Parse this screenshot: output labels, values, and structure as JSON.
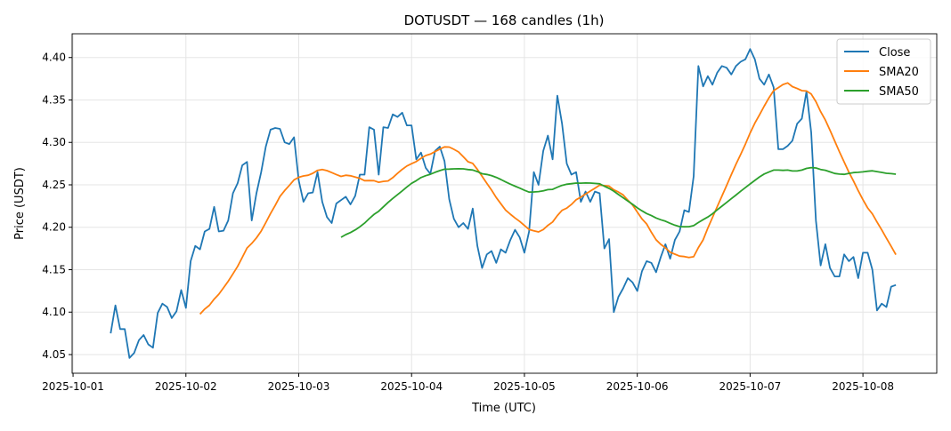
{
  "chart_data": {
    "type": "line",
    "title": "DOTUSDT — 168 candles (1h)",
    "xlabel": "Time (UTC)",
    "ylabel": "Price (USDT)",
    "start_time": "2025-10-01 08:00",
    "interval_hours": 1,
    "x_ticks": [
      "2025-10-01",
      "2025-10-02",
      "2025-10-03",
      "2025-10-04",
      "2025-10-05",
      "2025-10-06",
      "2025-10-07",
      "2025-10-08"
    ],
    "y_ticks": [
      "4.05",
      "4.10",
      "4.15",
      "4.20",
      "4.25",
      "4.30",
      "4.35",
      "4.40"
    ],
    "ylim": [
      4.028,
      4.428
    ],
    "xlim_hours_from_2025-10-01": [
      -0.2,
      183.7
    ],
    "grid": true,
    "legend_position": "top-right",
    "series": [
      {
        "name": "Close",
        "color": "#1f77b4",
        "values": [
          4.075,
          4.108,
          4.08,
          4.08,
          4.046,
          4.052,
          4.067,
          4.073,
          4.062,
          4.058,
          4.099,
          4.11,
          4.106,
          4.093,
          4.101,
          4.126,
          4.105,
          4.16,
          4.178,
          4.174,
          4.195,
          4.198,
          4.224,
          4.195,
          4.196,
          4.208,
          4.24,
          4.252,
          4.273,
          4.277,
          4.208,
          4.24,
          4.265,
          4.295,
          4.315,
          4.317,
          4.316,
          4.3,
          4.298,
          4.306,
          4.255,
          4.23,
          4.24,
          4.241,
          4.265,
          4.23,
          4.212,
          4.205,
          4.228,
          4.232,
          4.236,
          4.227,
          4.237,
          4.262,
          4.262,
          4.318,
          4.315,
          4.262,
          4.318,
          4.317,
          4.333,
          4.33,
          4.335,
          4.32,
          4.32,
          4.28,
          4.288,
          4.27,
          4.263,
          4.29,
          4.295,
          4.278,
          4.233,
          4.21,
          4.2,
          4.205,
          4.198,
          4.222,
          4.178,
          4.152,
          4.168,
          4.172,
          4.158,
          4.174,
          4.17,
          4.185,
          4.197,
          4.188,
          4.17,
          4.195,
          4.265,
          4.25,
          4.29,
          4.308,
          4.28,
          4.355,
          4.322,
          4.275,
          4.262,
          4.265,
          4.23,
          4.242,
          4.23,
          4.242,
          4.24,
          4.175,
          4.186,
          4.1,
          4.118,
          4.128,
          4.14,
          4.135,
          4.125,
          4.148,
          4.16,
          4.158,
          4.147,
          4.165,
          4.18,
          4.163,
          4.185,
          4.195,
          4.22,
          4.218,
          4.26,
          4.39,
          4.366,
          4.378,
          4.368,
          4.382,
          4.39,
          4.388,
          4.38,
          4.39,
          4.395,
          4.398,
          4.41,
          4.398,
          4.375,
          4.368,
          4.38,
          4.365,
          4.292,
          4.292,
          4.296,
          4.302,
          4.322,
          4.328,
          4.36,
          4.312,
          4.208,
          4.155,
          4.18,
          4.152,
          4.142,
          4.142,
          4.168,
          4.16,
          4.165,
          4.14,
          4.17,
          4.17,
          4.15,
          4.102,
          4.11,
          4.106,
          4.13,
          4.132
        ]
      },
      {
        "name": "SMA20",
        "color": "#ff7f0e",
        "window": 20
      },
      {
        "name": "SMA50",
        "color": "#2ca02c",
        "window": 50
      }
    ]
  }
}
